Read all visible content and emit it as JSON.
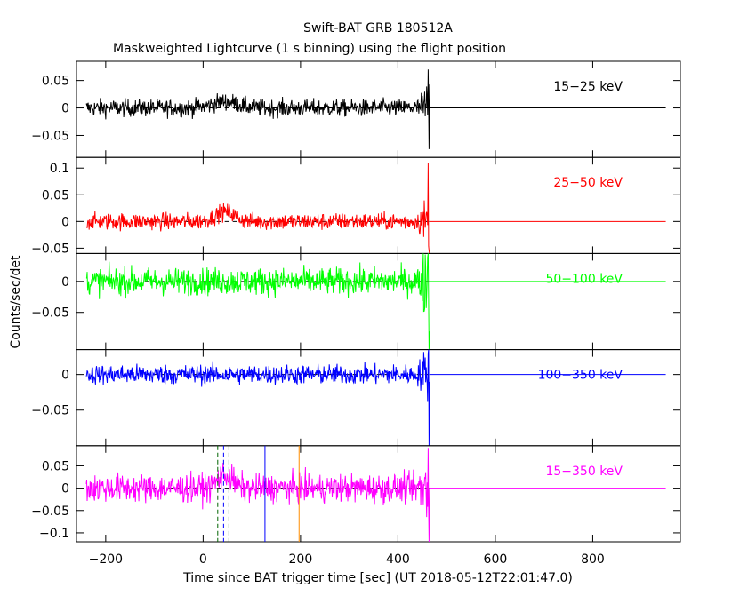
{
  "title": "Swift-BAT GRB 180512A",
  "subtitle": "Maskweighted Lightcurve (1 s binning) using the flight position",
  "ylabel": "Counts/sec/det",
  "xlabel": "Time since BAT trigger time [sec] (UT 2018-05-12T22:01:47.0)",
  "chart_data": {
    "type": "line",
    "title": "Swift-BAT GRB 180512A",
    "subtitle": "Maskweighted Lightcurve (1 s binning) using the flight position",
    "xlabel": "Time since BAT trigger time [sec] (UT 2018-05-12T22:01:47.0)",
    "ylabel": "Counts/sec/det",
    "xlim": [
      -260,
      980
    ],
    "x_ticks": [
      -200,
      0,
      200,
      400,
      600,
      800
    ],
    "x_tick_labels": [
      "−200",
      "0",
      "200",
      "400",
      "600",
      "800"
    ],
    "data_range": [
      -240,
      465
    ],
    "panels": [
      {
        "name": "15−25 keV",
        "color": "#000000",
        "ylim": [
          -0.09,
          0.085
        ],
        "yticks": [
          0.05,
          0,
          -0.05
        ],
        "ytick_labels": [
          "0.05",
          "0",
          "−0.05"
        ],
        "noise": 0.008,
        "features": [
          {
            "t": 45,
            "amp": 0.012,
            "width": 25
          },
          {
            "t": 462,
            "amp_spike": 0.07,
            "min_spike": -0.075
          }
        ]
      },
      {
        "name": "25−50 keV",
        "color": "#ff0000",
        "ylim": [
          -0.06,
          0.12
        ],
        "yticks": [
          0.1,
          0.05,
          0,
          -0.05
        ],
        "ytick_labels": [
          "0.1",
          "0.05",
          "0",
          "−0.05"
        ],
        "noise": 0.008,
        "features": [
          {
            "t": 45,
            "amp": 0.018,
            "width": 20
          },
          {
            "t": 462,
            "amp_spike": 0.11,
            "min_spike": -0.055
          }
        ]
      },
      {
        "name": "50−100 keV",
        "color": "#00ff00",
        "ylim": [
          -0.11,
          0.045
        ],
        "yticks": [
          0,
          -0.05
        ],
        "ytick_labels": [
          "0",
          "−0.05"
        ],
        "noise": 0.011,
        "features": [
          {
            "t": 462,
            "amp_spike": 0.045,
            "min_spike": -0.11
          }
        ]
      },
      {
        "name": "100−350 keV",
        "color": "#0000ff",
        "ylim": [
          -0.1,
          0.035
        ],
        "yticks": [
          0,
          -0.05
        ],
        "ytick_labels": [
          "0",
          "−0.05"
        ],
        "noise": 0.007,
        "features": [
          {
            "t": 462,
            "amp_spike": 0.03,
            "min_spike": -0.1
          }
        ]
      },
      {
        "name": "15−350 keV",
        "color": "#ff00ff",
        "ylim": [
          -0.12,
          0.095
        ],
        "yticks": [
          0.05,
          0,
          -0.05,
          -0.1
        ],
        "ytick_labels": [
          "0.05",
          "0",
          "−0.05",
          "−0.1"
        ],
        "noise": 0.016,
        "features": [
          {
            "t": 45,
            "amp": 0.03,
            "width": 15
          },
          {
            "t": 462,
            "amp_spike": 0.09,
            "min_spike": -0.12
          }
        ]
      }
    ],
    "vertical_markers": [
      {
        "x": 30,
        "color": "#006400",
        "style": "dashed"
      },
      {
        "x": 42,
        "color": "#0000ff",
        "style": "dashed"
      },
      {
        "x": 53,
        "color": "#006400",
        "style": "dashed"
      },
      {
        "x": 127,
        "color": "#0000ff",
        "style": "solid"
      },
      {
        "x": 197,
        "color": "#ff8c00",
        "style": "solid"
      }
    ]
  }
}
